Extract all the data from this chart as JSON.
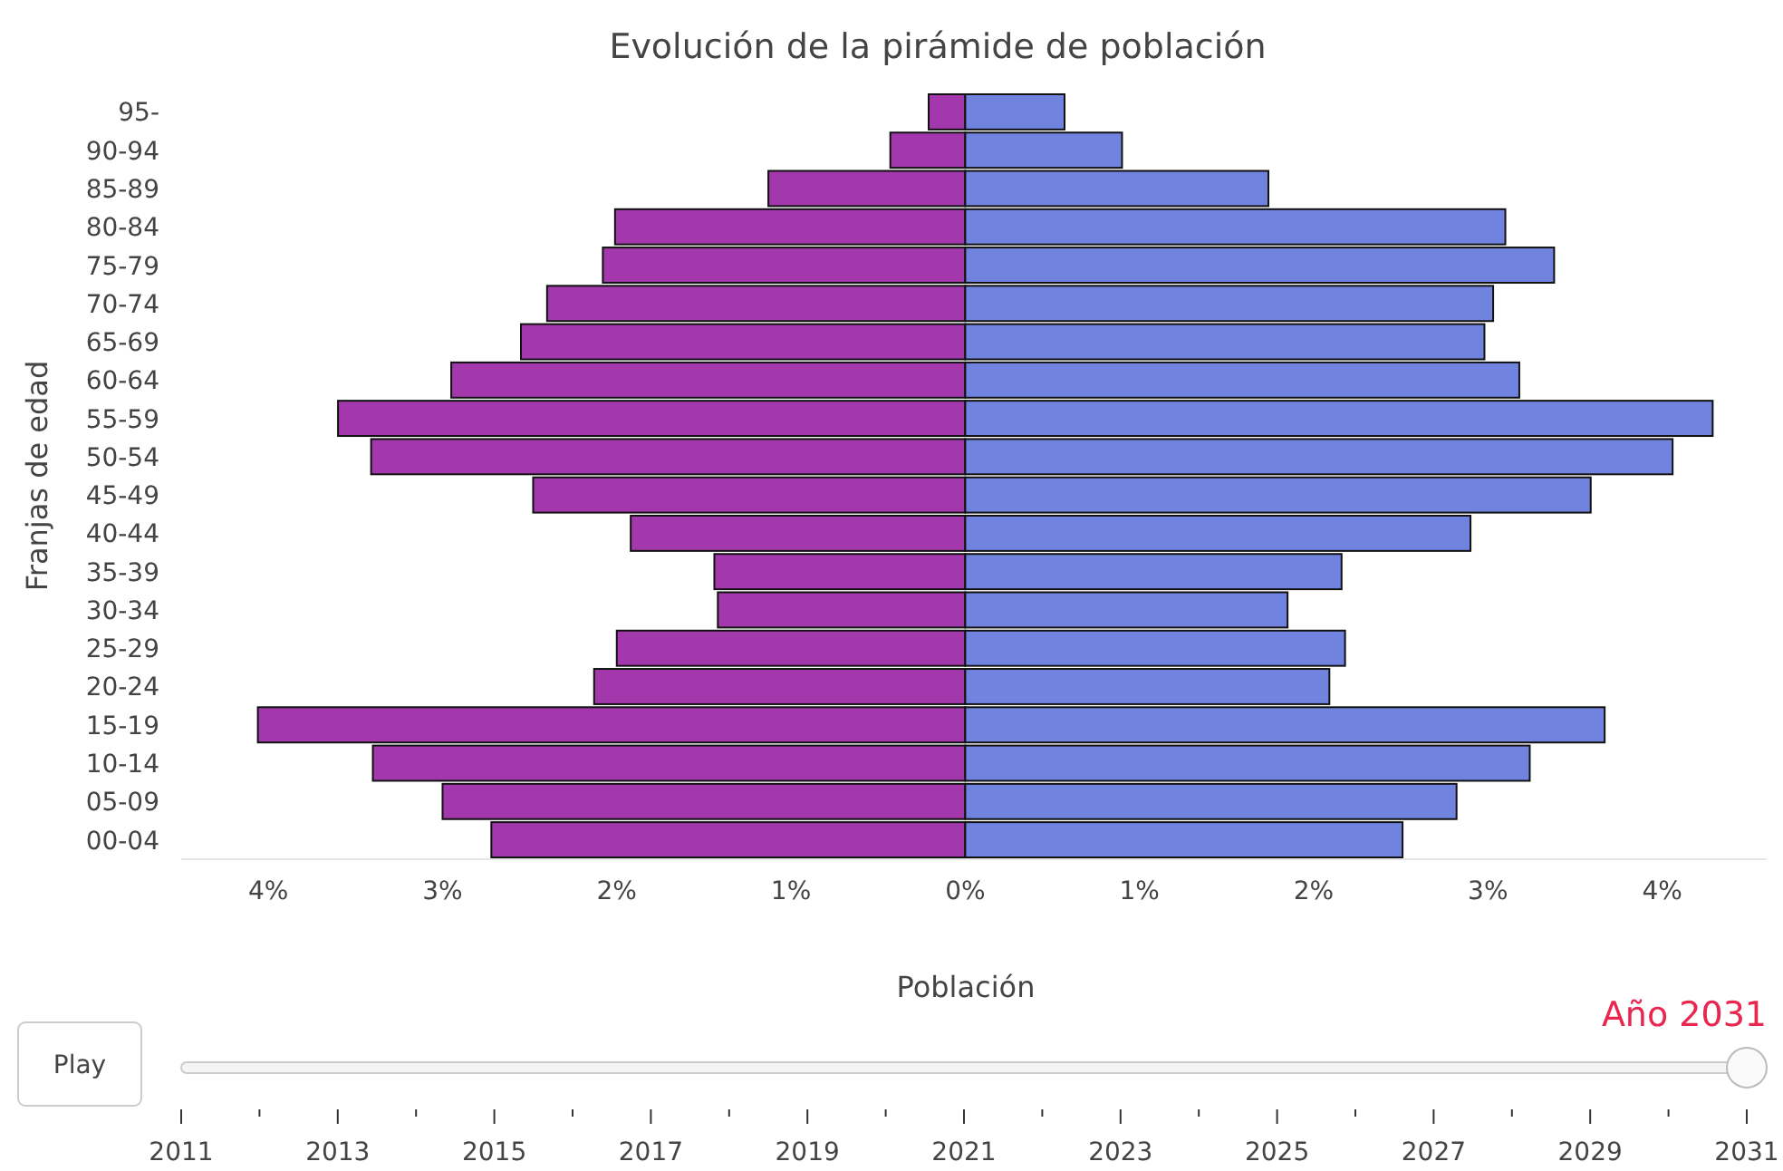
{
  "chart_data": {
    "type": "bar",
    "orientation": "horizontal",
    "stacked": true,
    "title": "Evolución de la pirámide de población",
    "xlabel": "Población",
    "ylabel": "Franjas de edad",
    "categories": [
      "95-",
      "90-94",
      "85-89",
      "80-84",
      "75-79",
      "70-74",
      "65-69",
      "60-64",
      "55-59",
      "50-54",
      "45-49",
      "40-44",
      "35-39",
      "30-34",
      "25-29",
      "20-24",
      "15-19",
      "10-14",
      "05-09",
      "00-04"
    ],
    "series": [
      {
        "color": "#a238ab",
        "values": [
          -0.21,
          -0.43,
          -1.13,
          -2.01,
          -2.08,
          -2.4,
          -2.55,
          -2.95,
          -3.6,
          -3.41,
          -2.48,
          -1.92,
          -1.44,
          -1.42,
          -2.0,
          -2.13,
          -4.06,
          -3.4,
          -3.0,
          -2.72
        ]
      },
      {
        "color": "#7083df",
        "values": [
          0.57,
          0.9,
          1.74,
          3.1,
          3.38,
          3.03,
          2.98,
          3.18,
          4.29,
          4.06,
          3.59,
          2.9,
          2.16,
          1.85,
          2.18,
          2.09,
          3.67,
          3.24,
          2.82,
          2.51
        ]
      }
    ],
    "xlim": [
      -4.5,
      4.6
    ],
    "xticks": [
      {
        "value": -4,
        "label": "4%"
      },
      {
        "value": -3,
        "label": "3%"
      },
      {
        "value": -2,
        "label": "2%"
      },
      {
        "value": -1,
        "label": "1%"
      },
      {
        "value": 0,
        "label": "0%"
      },
      {
        "value": 1,
        "label": "1%"
      },
      {
        "value": 2,
        "label": "2%"
      },
      {
        "value": 3,
        "label": "3%"
      },
      {
        "value": 4,
        "label": "4%"
      }
    ],
    "annotations": [
      "Play",
      "Año 2031",
      "2011",
      "2013",
      "2015",
      "2017",
      "2019",
      "2021",
      "2023",
      "2025",
      "2027",
      "2029",
      "2031"
    ]
  }
}
